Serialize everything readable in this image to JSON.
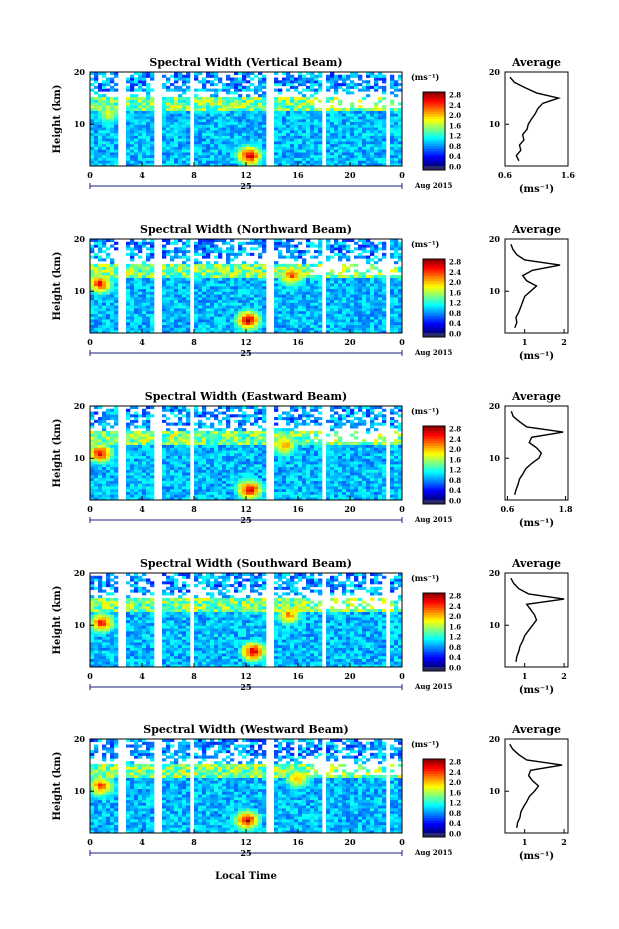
{
  "figure": {
    "x_axis_label": "Local Time",
    "date_label": "Aug 2015",
    "day_label": "25",
    "x_ticks": [
      "0",
      "4",
      "8",
      "12",
      "16",
      "20",
      "0"
    ]
  },
  "chart_data": [
    {
      "type": "heatmap",
      "title": "Spectral Width (Vertical Beam)",
      "ylabel": "Height (km)",
      "xlabel": "Local Time",
      "x_range": [
        0,
        24
      ],
      "y_range": [
        2,
        20
      ],
      "y_ticks": [
        "20",
        "10"
      ],
      "colorbar": {
        "label": "(ms⁻¹)",
        "ticks": [
          "2.8",
          "2.4",
          "2.0",
          "1.6",
          "1.2",
          "0.8",
          "0.4",
          "0.0"
        ],
        "min": 0.0,
        "max": 3.0
      },
      "data_gaps_hours": [
        [
          2.2,
          2.7
        ],
        [
          4.9,
          5.1
        ],
        [
          5.3,
          5.6
        ],
        [
          7.8,
          8.1
        ],
        [
          13.6,
          14.1
        ],
        [
          18.0,
          18.3
        ],
        [
          22.8,
          23.2
        ]
      ],
      "high_width_patches": [
        {
          "t": 12.3,
          "h": 4.0,
          "value": 2.8
        },
        {
          "t": 1.5,
          "h": 12.0,
          "value": 1.8
        }
      ],
      "profile": {
        "title": "Average",
        "xlabel": "(ms⁻¹)",
        "x_range": [
          0.6,
          1.6
        ],
        "x_ticks": [
          "0.6",
          "1.6"
        ],
        "y_range": [
          2,
          20
        ],
        "y_ticks": [
          "20",
          "10"
        ],
        "height_km": [
          3,
          4,
          5,
          6,
          7,
          8,
          9,
          10,
          11,
          12,
          13,
          14,
          15,
          16,
          17,
          18,
          19
        ],
        "values": [
          0.82,
          0.78,
          0.85,
          0.83,
          0.9,
          0.88,
          0.95,
          0.97,
          1.02,
          1.08,
          1.12,
          1.2,
          1.45,
          1.1,
          0.92,
          0.75,
          0.68
        ]
      }
    },
    {
      "type": "heatmap",
      "title": "Spectral Width (Northward Beam)",
      "ylabel": "Height (km)",
      "xlabel": "Local Time",
      "x_range": [
        0,
        24
      ],
      "y_range": [
        2,
        20
      ],
      "y_ticks": [
        "20",
        "10"
      ],
      "colorbar": {
        "label": "(ms⁻¹)",
        "ticks": [
          "2.8",
          "2.4",
          "2.0",
          "1.6",
          "1.2",
          "0.8",
          "0.4",
          "0.0"
        ],
        "min": 0.0,
        "max": 3.0
      },
      "data_gaps_hours": [
        [
          2.2,
          2.7
        ],
        [
          4.9,
          5.1
        ],
        [
          5.3,
          5.6
        ],
        [
          7.8,
          8.1
        ],
        [
          13.6,
          14.1
        ],
        [
          18.0,
          18.3
        ],
        [
          22.8,
          23.2
        ]
      ],
      "high_width_patches": [
        {
          "t": 12.2,
          "h": 4.5,
          "value": 2.8
        },
        {
          "t": 0.8,
          "h": 11.5,
          "value": 2.6
        },
        {
          "t": 15.5,
          "h": 13.0,
          "value": 2.4
        }
      ],
      "profile": {
        "title": "Average",
        "xlabel": "(ms⁻¹)",
        "x_range": [
          0.5,
          2.1
        ],
        "x_ticks": [
          "1",
          "2"
        ],
        "y_range": [
          2,
          20
        ],
        "y_ticks": [
          "20",
          "10"
        ],
        "height_km": [
          3,
          4,
          5,
          6,
          7,
          8,
          9,
          10,
          11,
          12,
          13,
          14,
          15,
          16,
          17,
          18,
          19
        ],
        "values": [
          0.75,
          0.8,
          0.78,
          0.85,
          0.9,
          0.95,
          1.0,
          1.15,
          1.3,
          1.05,
          0.95,
          1.2,
          1.9,
          1.0,
          0.8,
          0.7,
          0.65
        ]
      }
    },
    {
      "type": "heatmap",
      "title": "Spectral Width (Eastward Beam)",
      "ylabel": "Height (km)",
      "xlabel": "Local Time",
      "x_range": [
        0,
        24
      ],
      "y_range": [
        2,
        20
      ],
      "y_ticks": [
        "20",
        "10"
      ],
      "colorbar": {
        "label": "(ms⁻¹)",
        "ticks": [
          "2.8",
          "2.4",
          "2.0",
          "1.6",
          "1.2",
          "0.8",
          "0.4",
          "0.0"
        ],
        "min": 0.0,
        "max": 3.0
      },
      "data_gaps_hours": [
        [
          2.2,
          2.7
        ],
        [
          4.9,
          5.1
        ],
        [
          5.3,
          5.6
        ],
        [
          7.8,
          8.1
        ],
        [
          13.6,
          14.1
        ],
        [
          18.0,
          18.3
        ],
        [
          22.8,
          23.2
        ]
      ],
      "high_width_patches": [
        {
          "t": 12.3,
          "h": 4.0,
          "value": 2.8
        },
        {
          "t": 0.8,
          "h": 11.0,
          "value": 2.7
        },
        {
          "t": 15.0,
          "h": 12.5,
          "value": 2.2
        }
      ],
      "profile": {
        "title": "Average",
        "xlabel": "(ms⁻¹)",
        "x_range": [
          0.55,
          1.85
        ],
        "x_ticks": [
          "0.6",
          "1.8"
        ],
        "y_range": [
          2,
          20
        ],
        "y_ticks": [
          "20",
          "10"
        ],
        "height_km": [
          3,
          4,
          5,
          6,
          7,
          8,
          9,
          10,
          11,
          12,
          13,
          14,
          15,
          16,
          17,
          18,
          19
        ],
        "values": [
          0.75,
          0.78,
          0.82,
          0.85,
          0.92,
          0.98,
          1.1,
          1.25,
          1.3,
          1.2,
          1.05,
          1.1,
          1.75,
          1.0,
          0.85,
          0.72,
          0.68
        ]
      }
    },
    {
      "type": "heatmap",
      "title": "Spectral Width (Southward Beam)",
      "ylabel": "Height (km)",
      "xlabel": "Local Time",
      "x_range": [
        0,
        24
      ],
      "y_range": [
        2,
        20
      ],
      "y_ticks": [
        "20",
        "10"
      ],
      "colorbar": {
        "label": "(ms⁻¹)",
        "ticks": [
          "2.8",
          "2.4",
          "2.0",
          "1.6",
          "1.2",
          "0.8",
          "0.4",
          "0.0"
        ],
        "min": 0.0,
        "max": 3.0
      },
      "data_gaps_hours": [
        [
          2.2,
          2.7
        ],
        [
          4.9,
          5.1
        ],
        [
          5.3,
          5.6
        ],
        [
          7.8,
          8.1
        ],
        [
          13.6,
          14.1
        ],
        [
          18.0,
          18.3
        ],
        [
          22.8,
          23.2
        ]
      ],
      "high_width_patches": [
        {
          "t": 12.6,
          "h": 5.0,
          "value": 2.8
        },
        {
          "t": 0.9,
          "h": 10.5,
          "value": 2.6
        },
        {
          "t": 15.3,
          "h": 12.0,
          "value": 2.3
        }
      ],
      "profile": {
        "title": "Average",
        "xlabel": "(ms⁻¹)",
        "x_range": [
          0.5,
          2.1
        ],
        "x_ticks": [
          "1",
          "2"
        ],
        "y_range": [
          2,
          20
        ],
        "y_ticks": [
          "20",
          "10"
        ],
        "height_km": [
          3,
          4,
          5,
          6,
          7,
          8,
          9,
          10,
          11,
          12,
          13,
          14,
          15,
          16,
          17,
          18,
          19
        ],
        "values": [
          0.78,
          0.8,
          0.85,
          0.88,
          0.95,
          1.0,
          1.1,
          1.2,
          1.3,
          1.25,
          1.15,
          1.05,
          2.0,
          1.1,
          0.85,
          0.72,
          0.65
        ]
      }
    },
    {
      "type": "heatmap",
      "title": "Spectral Width (Westward Beam)",
      "ylabel": "Height (km)",
      "xlabel": "Local Time",
      "x_range": [
        0,
        24
      ],
      "y_range": [
        2,
        20
      ],
      "y_ticks": [
        "20",
        "10"
      ],
      "colorbar": {
        "label": "(ms⁻¹)",
        "ticks": [
          "2.8",
          "2.4",
          "2.0",
          "1.6",
          "1.2",
          "0.8",
          "0.4",
          "0.0"
        ],
        "min": 0.0,
        "max": 3.0
      },
      "data_gaps_hours": [
        [
          2.2,
          2.7
        ],
        [
          4.9,
          5.1
        ],
        [
          5.3,
          5.6
        ],
        [
          7.8,
          8.1
        ],
        [
          13.6,
          14.1
        ],
        [
          18.0,
          18.3
        ],
        [
          22.8,
          23.2
        ]
      ],
      "high_width_patches": [
        {
          "t": 12.1,
          "h": 4.5,
          "value": 2.8
        },
        {
          "t": 0.9,
          "h": 11.0,
          "value": 2.5
        },
        {
          "t": 16.0,
          "h": 12.5,
          "value": 2.2
        }
      ],
      "profile": {
        "title": "Average",
        "xlabel": "(ms⁻¹)",
        "x_range": [
          0.5,
          2.1
        ],
        "x_ticks": [
          "1",
          "2"
        ],
        "y_range": [
          2,
          20
        ],
        "y_ticks": [
          "20",
          "10"
        ],
        "height_km": [
          3,
          4,
          5,
          6,
          7,
          8,
          9,
          10,
          11,
          12,
          13,
          14,
          15,
          16,
          17,
          18,
          19
        ],
        "values": [
          0.8,
          0.82,
          0.88,
          0.9,
          0.97,
          1.05,
          1.12,
          1.25,
          1.35,
          1.2,
          1.1,
          1.15,
          1.95,
          1.05,
          0.85,
          0.7,
          0.62
        ]
      }
    }
  ]
}
